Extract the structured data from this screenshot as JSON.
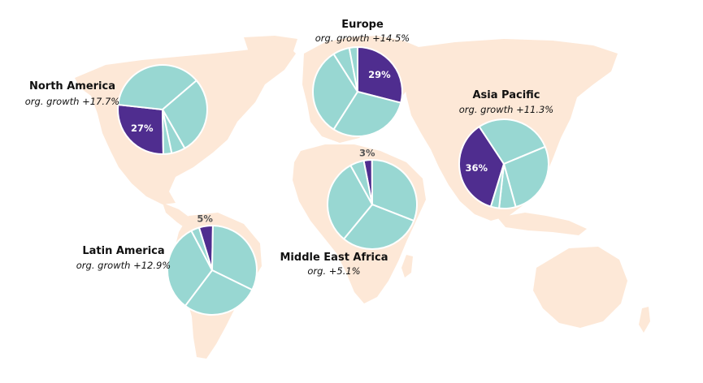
{
  "colors": {
    "land": "#fde8d7",
    "accent": "#4f2d8f",
    "slice": "#98d7d2",
    "slice_stroke": "#ffffff",
    "outside_label": "#555555",
    "inside_label": "#ffffff"
  },
  "chart_data": [
    {
      "type": "pie",
      "region": "North America",
      "growth": "org. growth +17.7%",
      "values": [
        27,
        37,
        28,
        5,
        3
      ],
      "highlight_index": 0,
      "highlight_label": "27%",
      "highlight_label_position": "inside",
      "start_angle_deg": 179
    },
    {
      "type": "pie",
      "region": "Europe",
      "growth": "org. growth +14.5%",
      "values": [
        29,
        30,
        32,
        6,
        3
      ],
      "highlight_index": 0,
      "highlight_label": "29%",
      "highlight_label_position": "inside",
      "start_angle_deg": 0
    },
    {
      "type": "pie",
      "region": "Asia Pacific",
      "growth": "org. growth +11.3%",
      "values": [
        36,
        28,
        27,
        6,
        3
      ],
      "highlight_index": 0,
      "highlight_label": "36%",
      "highlight_label_position": "inside",
      "start_angle_deg": 197
    },
    {
      "type": "pie",
      "region": "Middle East Africa",
      "growth": "org. +5.1%",
      "values": [
        3,
        31,
        30,
        31,
        5
      ],
      "highlight_index": 0,
      "highlight_label": "3%",
      "highlight_label_position": "outside",
      "start_angle_deg": 349
    },
    {
      "type": "pie",
      "region": "Latin America",
      "growth": "org. growth +12.9%",
      "values": [
        5,
        32,
        28,
        32,
        3
      ],
      "highlight_index": 0,
      "highlight_label": "5%",
      "highlight_label_position": "outside",
      "start_angle_deg": 343
    }
  ]
}
